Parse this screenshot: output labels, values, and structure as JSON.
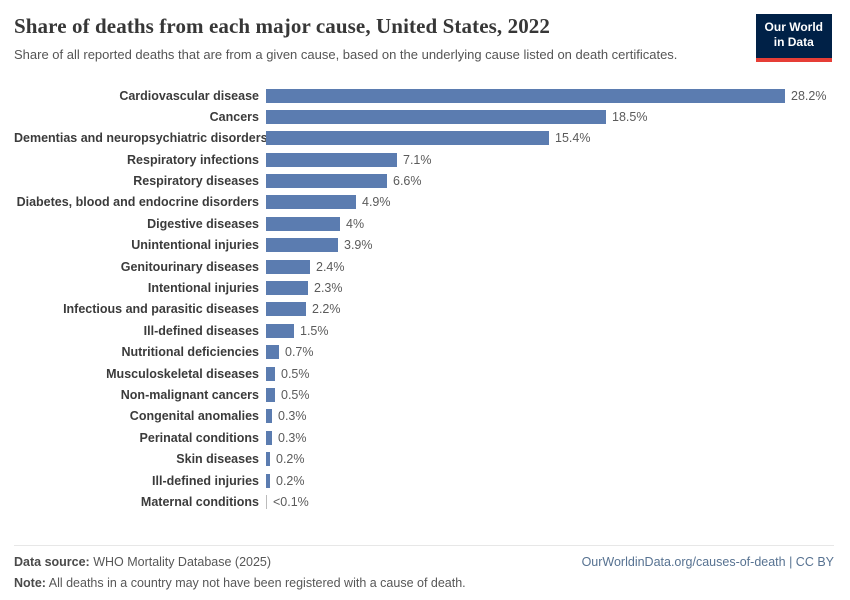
{
  "header": {
    "title": "Share of deaths from each major cause, United States, 2022",
    "subtitle": "Share of all reported deaths that are from a given cause, based on the underlying cause listed on death certificates.",
    "logo": {
      "line1": "Our World",
      "line2": "in Data",
      "bg_color": "#002147",
      "accent_color": "#e63e36"
    }
  },
  "chart_data": {
    "type": "bar",
    "orientation": "horizontal",
    "title": "Share of deaths from each major cause, United States, 2022",
    "xlabel": "",
    "ylabel": "",
    "xlim": [
      0,
      30
    ],
    "grid": false,
    "legend": false,
    "bar_color": "#5b7cb0",
    "categories": [
      "Cardiovascular disease",
      "Cancers",
      "Dementias and neuropsychiatric disorders",
      "Respiratory infections",
      "Respiratory diseases",
      "Diabetes, blood and endocrine disorders",
      "Digestive diseases",
      "Unintentional injuries",
      "Genitourinary diseases",
      "Intentional injuries",
      "Infectious and parasitic diseases",
      "Ill-defined diseases",
      "Nutritional deficiencies",
      "Musculoskeletal diseases",
      "Non-malignant cancers",
      "Congenital anomalies",
      "Perinatal conditions",
      "Skin diseases",
      "Ill-defined injuries",
      "Maternal conditions"
    ],
    "values": [
      28.2,
      18.5,
      15.4,
      7.1,
      6.6,
      4.9,
      4.0,
      3.9,
      2.4,
      2.3,
      2.2,
      1.5,
      0.7,
      0.5,
      0.5,
      0.3,
      0.3,
      0.2,
      0.2,
      0.05
    ],
    "value_labels": [
      "28.2%",
      "18.5%",
      "15.4%",
      "7.1%",
      "6.6%",
      "4.9%",
      "4%",
      "3.9%",
      "2.4%",
      "2.3%",
      "2.2%",
      "1.5%",
      "0.7%",
      "0.5%",
      "0.5%",
      "0.3%",
      "0.3%",
      "0.2%",
      "0.2%",
      "<0.1%"
    ]
  },
  "footer": {
    "source_label": "Data source:",
    "source_text": " WHO Mortality Database (2025)",
    "note_label": "Note:",
    "note_text": " All deaths in a country may not have been registered with a cause of death.",
    "credit": "OurWorldinData.org/causes-of-death | CC BY"
  }
}
